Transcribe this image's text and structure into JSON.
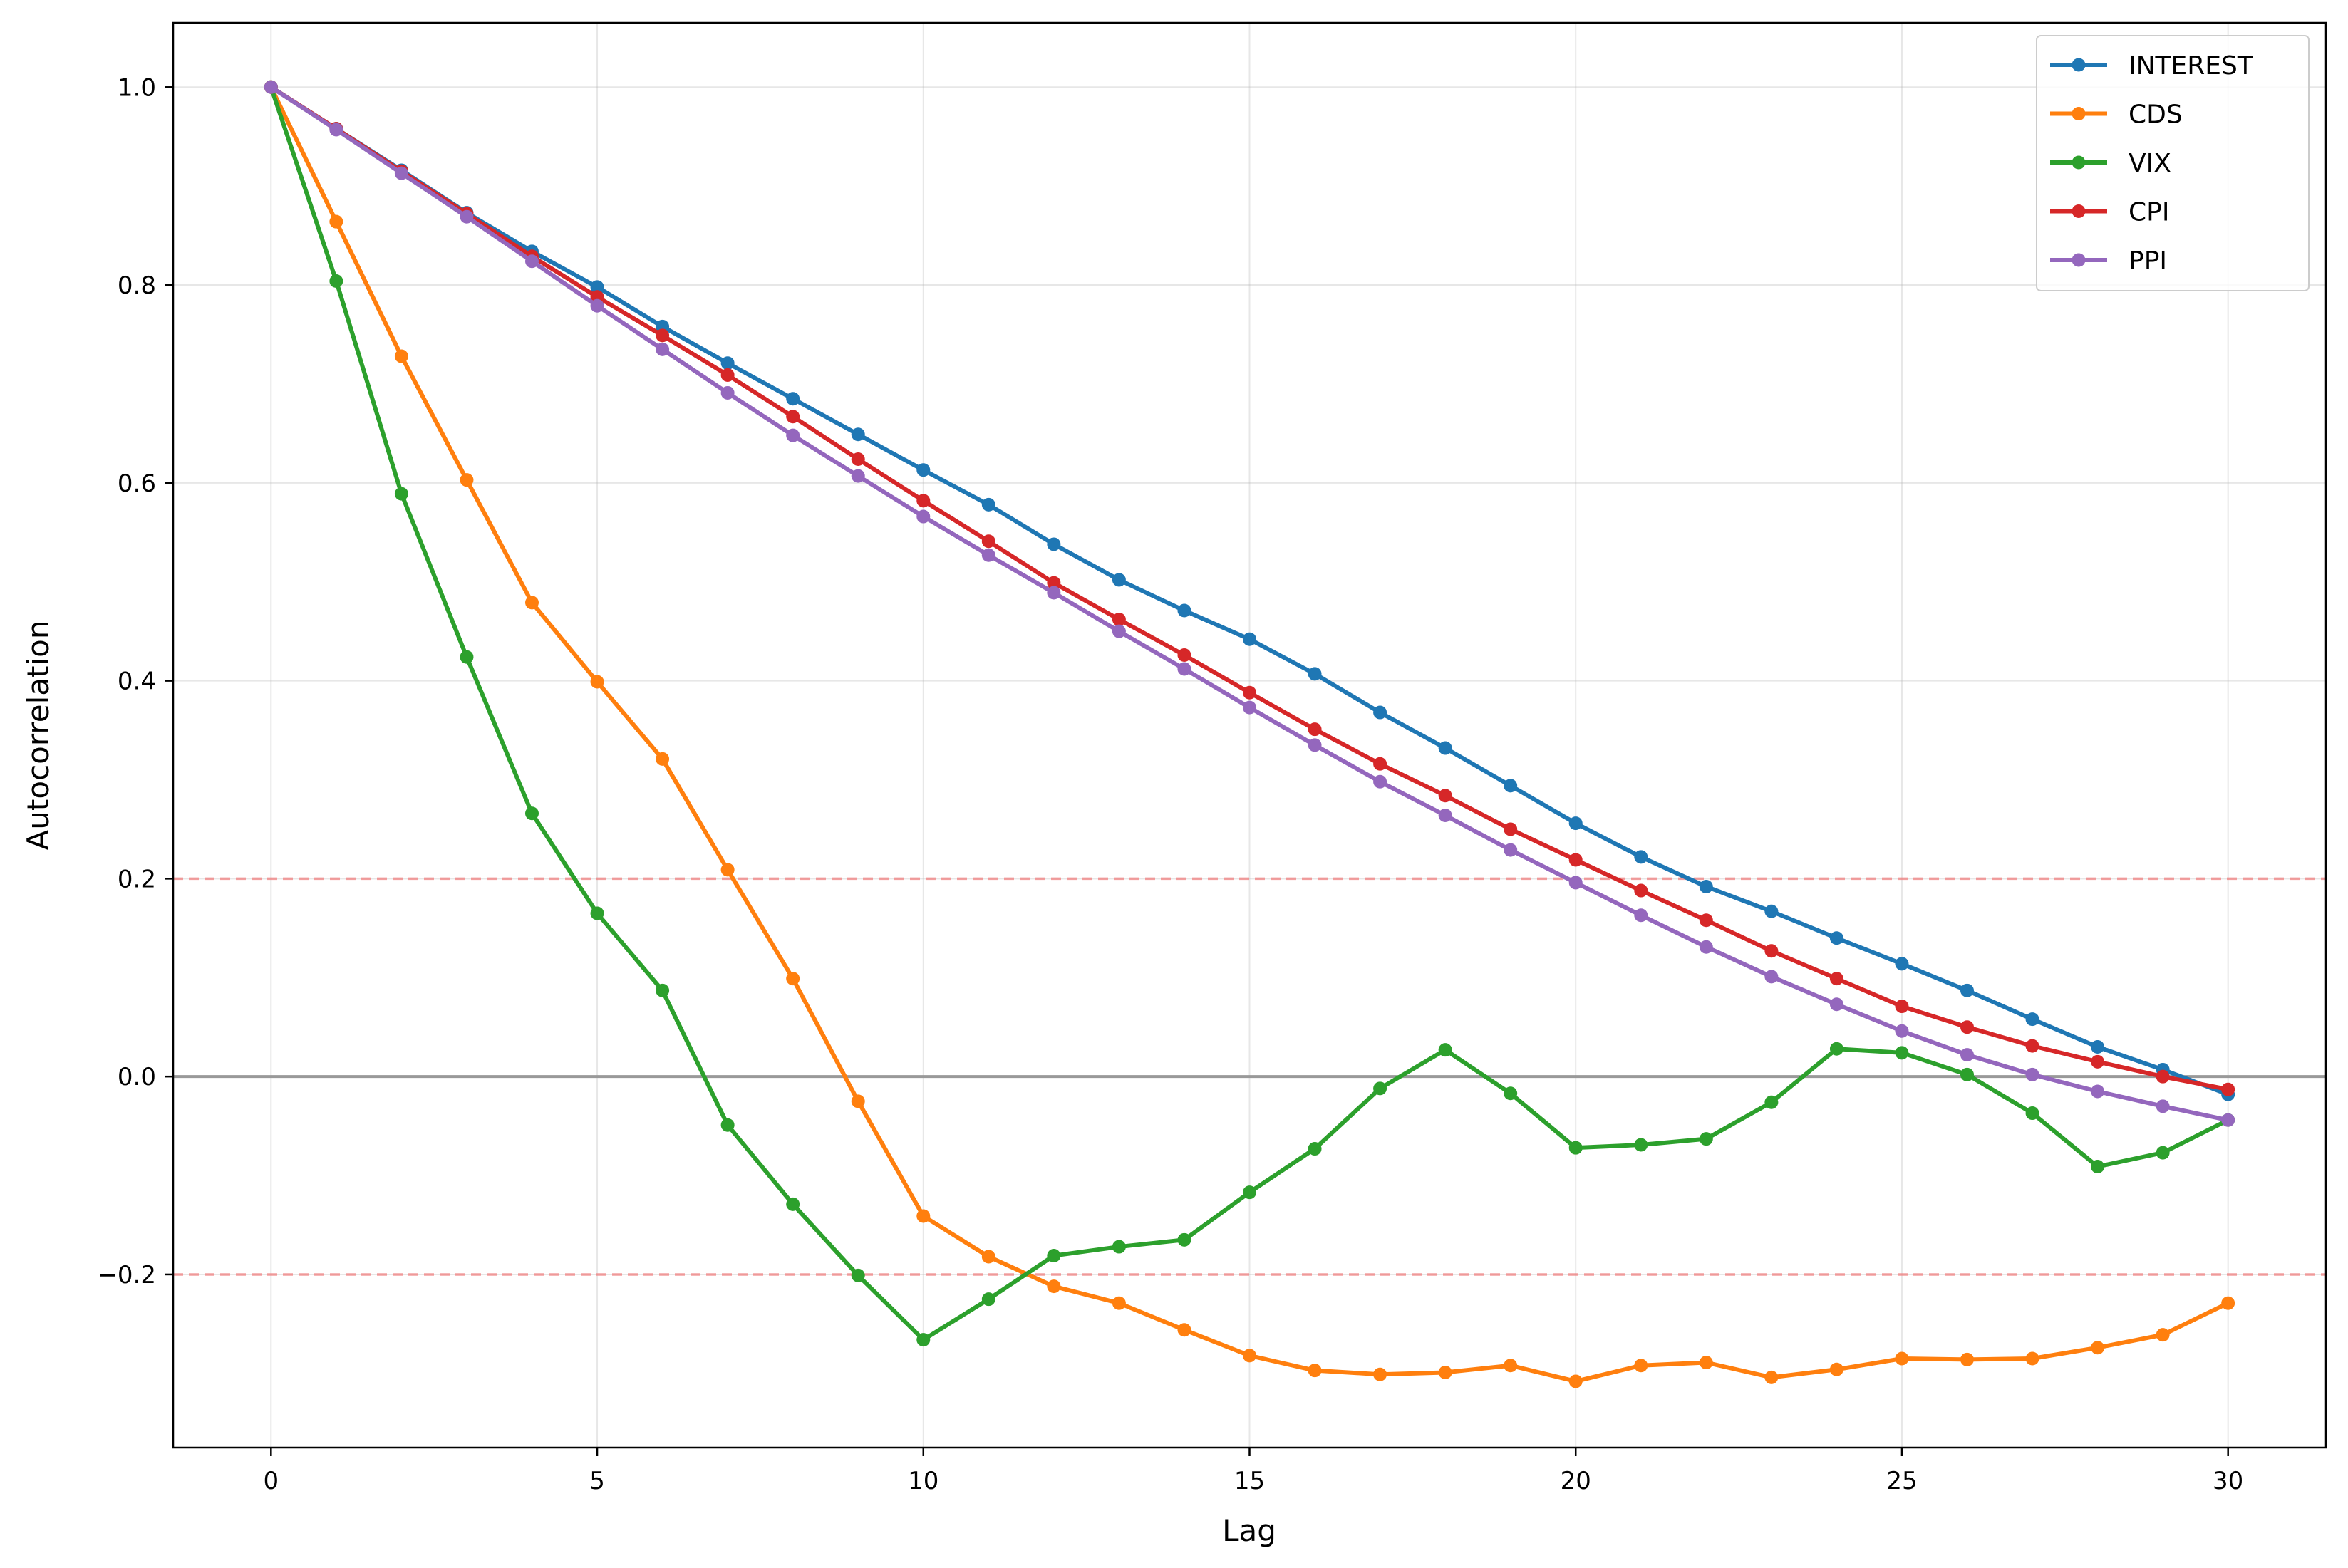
{
  "chart_data": {
    "type": "line",
    "title": "",
    "xlabel": "Lag",
    "ylabel": "Autocorrelation",
    "xlim": [
      -1.5,
      31.5
    ],
    "ylim": [
      -0.375,
      1.065
    ],
    "xticks": [
      0,
      5,
      10,
      15,
      20,
      25,
      30
    ],
    "xtick_labels": [
      "0",
      "5",
      "10",
      "15",
      "20",
      "25",
      "30"
    ],
    "yticks": [
      -0.2,
      0.0,
      0.2,
      0.4,
      0.6,
      0.8,
      1.0
    ],
    "ytick_labels": [
      "−0.2",
      "0.0",
      "0.2",
      "0.4",
      "0.6",
      "0.8",
      "1.0"
    ],
    "grid": true,
    "legend_position": "top-right",
    "reference_lines": [
      {
        "y": 0.2,
        "style": "dashed",
        "color": "#f08080"
      },
      {
        "y": -0.2,
        "style": "dashed",
        "color": "#f08080"
      },
      {
        "y": 0.0,
        "style": "solid",
        "color": "#999999"
      }
    ],
    "x": [
      0,
      1,
      2,
      3,
      4,
      5,
      6,
      7,
      8,
      9,
      10,
      11,
      12,
      13,
      14,
      15,
      16,
      17,
      18,
      19,
      20,
      21,
      22,
      23,
      24,
      25,
      26,
      27,
      28,
      29,
      30
    ],
    "series": [
      {
        "name": "INTEREST",
        "color": "#1f77b4",
        "values": [
          1.0,
          0.958,
          0.916,
          0.873,
          0.834,
          0.798,
          0.758,
          0.721,
          0.685,
          0.649,
          0.613,
          0.578,
          0.538,
          0.502,
          0.471,
          0.442,
          0.407,
          0.368,
          0.332,
          0.294,
          0.256,
          0.222,
          0.192,
          0.167,
          0.14,
          0.114,
          0.087,
          0.058,
          0.03,
          0.007,
          -0.018
        ]
      },
      {
        "name": "CDS",
        "color": "#ff7f0e",
        "values": [
          1.0,
          0.864,
          0.728,
          0.603,
          0.479,
          0.399,
          0.321,
          0.209,
          0.099,
          -0.025,
          -0.141,
          -0.182,
          -0.212,
          -0.229,
          -0.256,
          -0.282,
          -0.297,
          -0.301,
          -0.299,
          -0.292,
          -0.308,
          -0.292,
          -0.289,
          -0.304,
          -0.296,
          -0.285,
          -0.286,
          -0.285,
          -0.274,
          -0.261,
          -0.229
        ]
      },
      {
        "name": "VIX",
        "color": "#2ca02c",
        "values": [
          1.0,
          0.804,
          0.589,
          0.424,
          0.266,
          0.165,
          0.087,
          -0.049,
          -0.129,
          -0.201,
          -0.266,
          -0.225,
          -0.181,
          -0.172,
          -0.165,
          -0.117,
          -0.073,
          -0.012,
          0.027,
          -0.017,
          -0.072,
          -0.069,
          -0.063,
          -0.026,
          0.028,
          0.024,
          0.002,
          -0.037,
          -0.091,
          -0.077,
          -0.044
        ]
      },
      {
        "name": "CPI",
        "color": "#d62728",
        "values": [
          1.0,
          0.958,
          0.915,
          0.872,
          0.829,
          0.788,
          0.749,
          0.709,
          0.667,
          0.624,
          0.582,
          0.541,
          0.499,
          0.462,
          0.426,
          0.388,
          0.351,
          0.316,
          0.284,
          0.25,
          0.219,
          0.188,
          0.158,
          0.127,
          0.099,
          0.071,
          0.05,
          0.031,
          0.015,
          0.0,
          -0.013
        ]
      },
      {
        "name": "PPI",
        "color": "#9467bd",
        "values": [
          1.0,
          0.957,
          0.913,
          0.869,
          0.824,
          0.779,
          0.735,
          0.691,
          0.648,
          0.607,
          0.566,
          0.527,
          0.489,
          0.45,
          0.412,
          0.373,
          0.335,
          0.298,
          0.264,
          0.229,
          0.196,
          0.163,
          0.131,
          0.101,
          0.073,
          0.046,
          0.022,
          0.002,
          -0.015,
          -0.03,
          -0.044
        ]
      }
    ]
  }
}
